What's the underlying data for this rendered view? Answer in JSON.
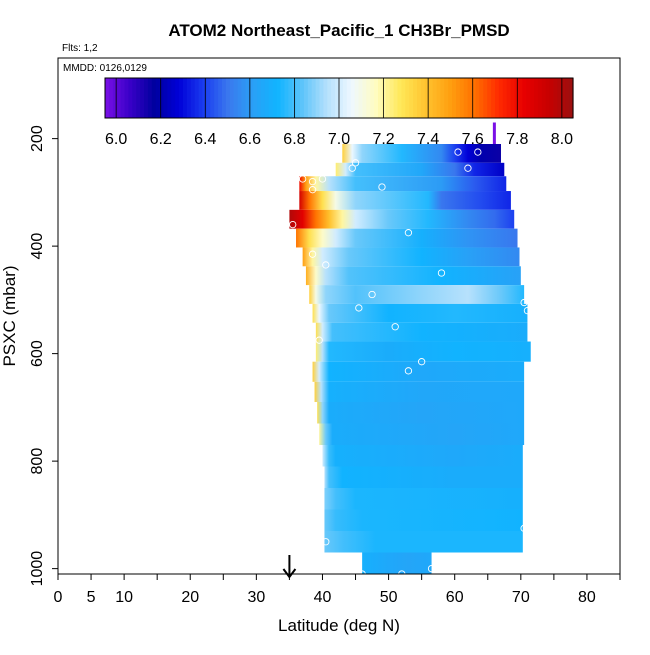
{
  "chart_data": {
    "type": "heatmap",
    "title": "ATOM2 Northeast_Pacific_1 CH3Br_PMSD",
    "subtitle_flights": "Flts: 1,2",
    "subtitle_dates": "MMDD: 0126,0129",
    "xlabel": "Latitude (deg N)",
    "ylabel": "PSXC (mbar)",
    "xlim": [
      0,
      85
    ],
    "ylim": [
      1010,
      50
    ],
    "y_reversed": true,
    "x_tick_labels": [
      "0",
      "5",
      "10",
      "20",
      "30",
      "40",
      "50",
      "60",
      "70",
      "80"
    ],
    "y_tick_labels": [
      "200",
      "400",
      "600",
      "800",
      "1000"
    ],
    "colorbar": {
      "min": 5.95,
      "max": 8.05,
      "tick_labels": [
        "6.0",
        "6.2",
        "6.4",
        "6.6",
        "6.8",
        "7.0",
        "7.2",
        "7.4",
        "7.6",
        "7.8",
        "8.0"
      ],
      "colors": [
        "#7a10e6",
        "#3a00c8",
        "#00009e",
        "#0000d8",
        "#1a3cf0",
        "#3a78ee",
        "#2aa0f6",
        "#10b4ff",
        "#5cc4fa",
        "#b4e0fc",
        "#eef8ff",
        "#fffcc0",
        "#ffe858",
        "#ffc430",
        "#ffa010",
        "#ff7000",
        "#ff2a00",
        "#e80000",
        "#c80000",
        "#9c1010"
      ]
    },
    "rows": [
      {
        "p": 230,
        "lat_start": 43.0,
        "lat_end": 67.0,
        "stops": [
          [
            43.0,
            7.35
          ],
          [
            44.5,
            7.05
          ],
          [
            46,
            6.9
          ],
          [
            52,
            6.75
          ],
          [
            58,
            6.55
          ],
          [
            60,
            6.4
          ],
          [
            62,
            6.28
          ],
          [
            64,
            6.2
          ],
          [
            67,
            6.15
          ]
        ]
      },
      {
        "p": 260,
        "lat_start": 42.0,
        "lat_end": 67.5,
        "stops": [
          [
            42,
            7.25
          ],
          [
            43.5,
            7.0
          ],
          [
            45,
            6.8
          ],
          [
            55,
            6.65
          ],
          [
            60,
            6.5
          ],
          [
            63,
            6.35
          ],
          [
            67.5,
            6.25
          ]
        ]
      },
      {
        "p": 280,
        "lat_start": 36.5,
        "lat_end": 67.8,
        "stops": [
          [
            36.5,
            7.8
          ],
          [
            37.5,
            7.5
          ],
          [
            39,
            7.2
          ],
          [
            41,
            6.95
          ],
          [
            45,
            6.8
          ],
          [
            58,
            6.6
          ],
          [
            63,
            6.45
          ],
          [
            67.8,
            6.35
          ]
        ]
      },
      {
        "p": 315,
        "lat_start": 36.5,
        "lat_end": 68.5,
        "stops": [
          [
            36.5,
            7.9
          ],
          [
            38,
            7.6
          ],
          [
            40,
            7.3
          ],
          [
            42,
            7.1
          ],
          [
            45,
            6.9
          ],
          [
            56,
            6.75
          ],
          [
            58,
            6.5
          ],
          [
            64,
            6.42
          ],
          [
            68.5,
            6.35
          ]
        ]
      },
      {
        "p": 350,
        "lat_start": 35.0,
        "lat_end": 69.0,
        "stops": [
          [
            35,
            8.0
          ],
          [
            37,
            7.85
          ],
          [
            39,
            7.6
          ],
          [
            41,
            7.4
          ],
          [
            43,
            7.2
          ],
          [
            45,
            7.0
          ],
          [
            50,
            6.85
          ],
          [
            56,
            6.75
          ],
          [
            62,
            6.55
          ],
          [
            66,
            6.48
          ],
          [
            69,
            6.4
          ]
        ]
      },
      {
        "p": 385,
        "lat_start": 36.0,
        "lat_end": 69.5,
        "stops": [
          [
            36,
            7.6
          ],
          [
            38,
            7.3
          ],
          [
            40,
            7.15
          ],
          [
            42,
            7.0
          ],
          [
            45,
            6.85
          ],
          [
            55,
            6.7
          ],
          [
            62,
            6.58
          ],
          [
            69.5,
            6.5
          ]
        ]
      },
      {
        "p": 420,
        "lat_start": 37.0,
        "lat_end": 69.8,
        "stops": [
          [
            37,
            7.5
          ],
          [
            38.5,
            7.2
          ],
          [
            40,
            7.0
          ],
          [
            44,
            6.85
          ],
          [
            55,
            6.72
          ],
          [
            62,
            6.62
          ],
          [
            69.8,
            6.55
          ]
        ]
      },
      {
        "p": 455,
        "lat_start": 37.5,
        "lat_end": 70.0,
        "stops": [
          [
            37.5,
            7.45
          ],
          [
            39,
            7.15
          ],
          [
            40.5,
            6.95
          ],
          [
            44,
            6.82
          ],
          [
            58,
            6.72
          ],
          [
            70,
            6.62
          ]
        ]
      },
      {
        "p": 490,
        "lat_start": 38.0,
        "lat_end": 70.5,
        "stops": [
          [
            38,
            7.35
          ],
          [
            39,
            7.1
          ],
          [
            40.5,
            6.9
          ],
          [
            45,
            6.82
          ],
          [
            55,
            6.9
          ],
          [
            62,
            6.95
          ],
          [
            67,
            6.85
          ],
          [
            70.5,
            6.75
          ]
        ]
      },
      {
        "p": 525,
        "lat_start": 38.5,
        "lat_end": 71.0,
        "stops": [
          [
            38.5,
            7.3
          ],
          [
            39.5,
            7.05
          ],
          [
            41,
            6.85
          ],
          [
            50,
            6.72
          ],
          [
            60,
            6.75
          ],
          [
            71,
            6.7
          ]
        ]
      },
      {
        "p": 560,
        "lat_start": 39.0,
        "lat_end": 71.0,
        "stops": [
          [
            39,
            7.3
          ],
          [
            40,
            7.0
          ],
          [
            41.5,
            6.8
          ],
          [
            55,
            6.72
          ],
          [
            71,
            6.68
          ]
        ]
      },
      {
        "p": 595,
        "lat_start": 39.0,
        "lat_end": 71.5,
        "stops": [
          [
            39,
            7.25
          ],
          [
            40,
            6.95
          ],
          [
            41,
            6.75
          ],
          [
            50,
            6.68
          ],
          [
            60,
            6.72
          ],
          [
            71.5,
            6.7
          ]
        ]
      },
      {
        "p": 635,
        "lat_start": 38.5,
        "lat_end": 70.5,
        "stops": [
          [
            38.5,
            7.35
          ],
          [
            39.5,
            7.0
          ],
          [
            41,
            6.72
          ],
          [
            55,
            6.66
          ],
          [
            70.5,
            6.68
          ]
        ]
      },
      {
        "p": 670,
        "lat_start": 38.8,
        "lat_end": 70.5,
        "stops": [
          [
            38.8,
            7.35
          ],
          [
            39.8,
            6.95
          ],
          [
            41,
            6.7
          ],
          [
            55,
            6.65
          ],
          [
            70.5,
            6.66
          ]
        ]
      },
      {
        "p": 710,
        "lat_start": 39.2,
        "lat_end": 70.5,
        "stops": [
          [
            39.2,
            7.3
          ],
          [
            40,
            6.9
          ],
          [
            41,
            6.68
          ],
          [
            55,
            6.64
          ],
          [
            70.5,
            6.66
          ]
        ]
      },
      {
        "p": 750,
        "lat_start": 39.5,
        "lat_end": 70.5,
        "stops": [
          [
            39.5,
            7.2
          ],
          [
            40.5,
            6.85
          ],
          [
            41.5,
            6.68
          ],
          [
            60,
            6.64
          ],
          [
            70.5,
            6.66
          ]
        ]
      },
      {
        "p": 790,
        "lat_start": 40.0,
        "lat_end": 70.3,
        "stops": [
          [
            40,
            7.0
          ],
          [
            41,
            6.78
          ],
          [
            42,
            6.7
          ],
          [
            60,
            6.66
          ],
          [
            70.3,
            6.68
          ]
        ]
      },
      {
        "p": 830,
        "lat_start": 40.3,
        "lat_end": 70.3,
        "stops": [
          [
            40.3,
            6.95
          ],
          [
            41,
            6.8
          ],
          [
            43,
            6.72
          ],
          [
            60,
            6.68
          ],
          [
            70.3,
            6.68
          ]
        ]
      },
      {
        "p": 870,
        "lat_start": 40.3,
        "lat_end": 70.3,
        "stops": [
          [
            40.3,
            6.88
          ],
          [
            42,
            6.8
          ],
          [
            45,
            6.74
          ],
          [
            70.3,
            6.7
          ]
        ]
      },
      {
        "p": 910,
        "lat_start": 40.3,
        "lat_end": 70.3,
        "stops": [
          [
            40.3,
            6.85
          ],
          [
            42,
            6.78
          ],
          [
            46,
            6.74
          ],
          [
            70.3,
            6.72
          ]
        ]
      },
      {
        "p": 950,
        "lat_start": 40.3,
        "lat_end": 70.3,
        "stops": [
          [
            40.3,
            6.85
          ],
          [
            43,
            6.8
          ],
          [
            48,
            6.74
          ],
          [
            70.3,
            6.74
          ]
        ]
      },
      {
        "p": 990,
        "lat_start": 46.0,
        "lat_end": 56.5,
        "stops": [
          [
            46,
            6.7
          ],
          [
            50,
            6.66
          ],
          [
            53,
            6.64
          ],
          [
            56.5,
            6.66
          ]
        ]
      }
    ],
    "sample_points": [
      [
        60.5,
        225
      ],
      [
        62,
        255
      ],
      [
        63.5,
        225
      ],
      [
        44.5,
        255
      ],
      [
        45,
        245
      ],
      [
        37,
        275
      ],
      [
        38.5,
        280
      ],
      [
        40,
        275
      ],
      [
        49,
        290
      ],
      [
        38.5,
        295
      ],
      [
        35.5,
        360
      ],
      [
        53,
        375
      ],
      [
        38.5,
        415
      ],
      [
        40.5,
        435
      ],
      [
        58,
        450
      ],
      [
        47.5,
        490
      ],
      [
        70.5,
        505
      ],
      [
        45.5,
        515
      ],
      [
        71,
        520
      ],
      [
        51,
        550
      ],
      [
        39.5,
        575
      ],
      [
        72,
        570
      ],
      [
        55,
        615
      ],
      [
        53,
        632
      ],
      [
        70.5,
        925
      ],
      [
        40.5,
        950
      ],
      [
        46,
        1010
      ],
      [
        52,
        1010
      ],
      [
        56.5,
        1000
      ]
    ],
    "top_marker": {
      "lat": 66,
      "p_from": 170,
      "p_to": 210,
      "color": "#7a10e6"
    },
    "arrow_lat": 35
  }
}
